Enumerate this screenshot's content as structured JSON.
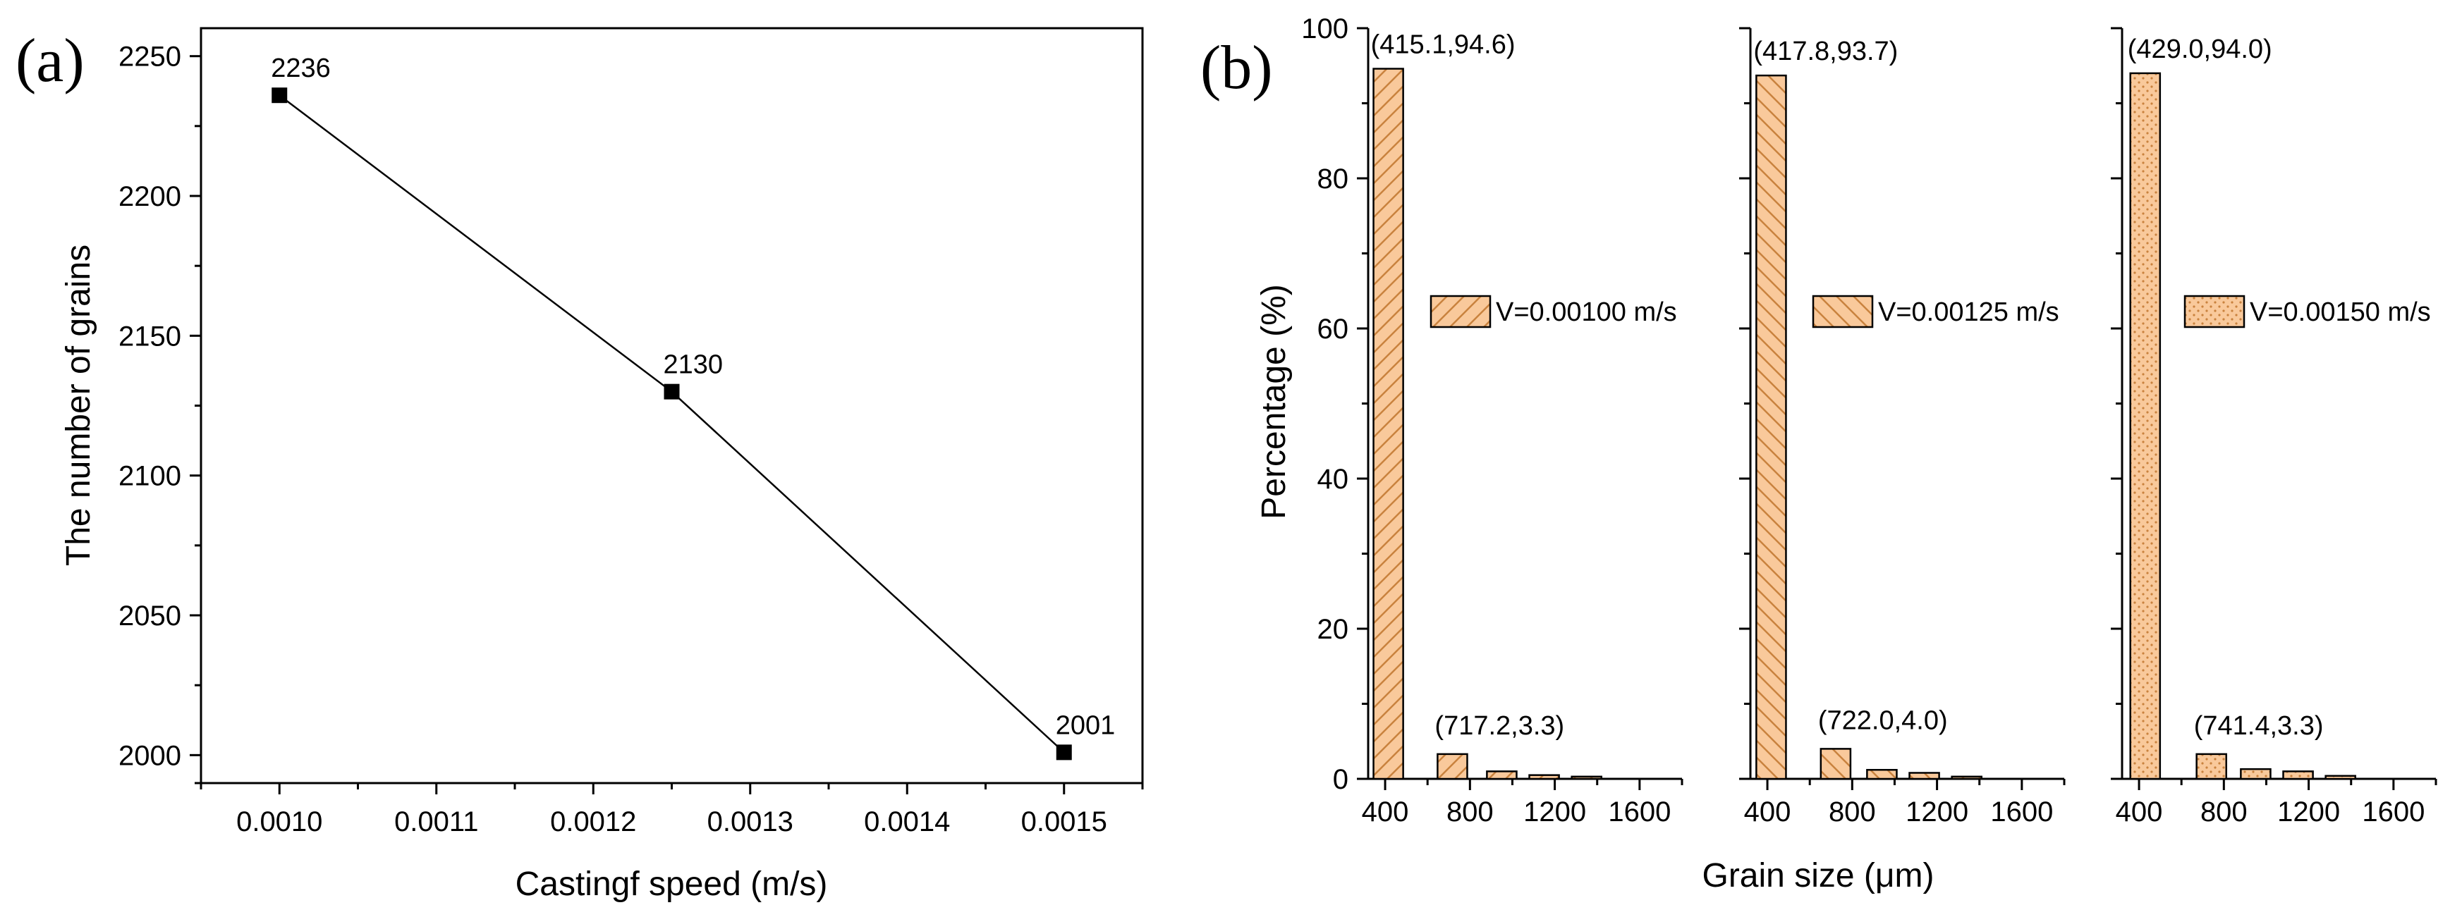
{
  "panel_labels": {
    "a": "(a)",
    "b": "(b)"
  },
  "colors": {
    "bar_fill": "#f9c99b",
    "bar_stroke": "#c9823e",
    "line": "#000000"
  },
  "chart_data": [
    {
      "id": "a",
      "type": "line",
      "xlabel": "Castingf speed (m/s)",
      "ylabel": "The number of grains",
      "xlim": [
        0.00095,
        0.00155
      ],
      "ylim": [
        1990,
        2260
      ],
      "xticks": [
        0.001,
        0.0011,
        0.0012,
        0.0013,
        0.0014,
        0.0015
      ],
      "xtick_labels": [
        "0.0010",
        "0.0011",
        "0.0012",
        "0.0013",
        "0.0014",
        "0.0015"
      ],
      "yticks": [
        2000,
        2050,
        2100,
        2150,
        2200,
        2250
      ],
      "ytick_labels": [
        "2000",
        "2050",
        "2100",
        "2150",
        "2200",
        "2250"
      ],
      "x": [
        0.001,
        0.00125,
        0.0015
      ],
      "y": [
        2236,
        2130,
        2001
      ],
      "point_labels": [
        "2236",
        "2130",
        "2001"
      ],
      "marker": "square"
    },
    {
      "id": "b",
      "type": "bar",
      "xlabel": "Grain size (μm)",
      "ylabel": "Percentage (%)",
      "ylim": [
        0,
        100
      ],
      "yticks": [
        0,
        20,
        40,
        60,
        80,
        100
      ],
      "ytick_labels": [
        "0",
        "20",
        "40",
        "60",
        "80",
        "100"
      ],
      "xlim": [
        320,
        1800
      ],
      "xticks": [
        400,
        800,
        1200,
        1600
      ],
      "xtick_labels": [
        "400",
        "800",
        "1200",
        "1600"
      ],
      "bin_width": 140,
      "subplots": [
        {
          "name": "V=0.00100 m/s",
          "pattern": "hatch-forward",
          "x": [
            415.1,
            717.2,
            950,
            1150,
            1350
          ],
          "values": [
            94.6,
            3.3,
            1.0,
            0.5,
            0.3
          ],
          "annotations": [
            "(415.1,94.6)",
            "(717.2,3.3)"
          ]
        },
        {
          "name": "V=0.00125 m/s",
          "pattern": "hatch-back",
          "x": [
            417.8,
            722.0,
            940,
            1140,
            1340
          ],
          "values": [
            93.7,
            4.0,
            1.2,
            0.8,
            0.3
          ],
          "annotations": [
            "(417.8,93.7)",
            "(722.0,4.0)"
          ]
        },
        {
          "name": "V=0.00150 m/s",
          "pattern": "dots",
          "x": [
            429.0,
            741.4,
            950,
            1150,
            1350
          ],
          "values": [
            94.0,
            3.3,
            1.3,
            1.0,
            0.4
          ],
          "annotations": [
            "(429.0,94.0)",
            "(741.4,3.3)"
          ]
        }
      ]
    }
  ]
}
